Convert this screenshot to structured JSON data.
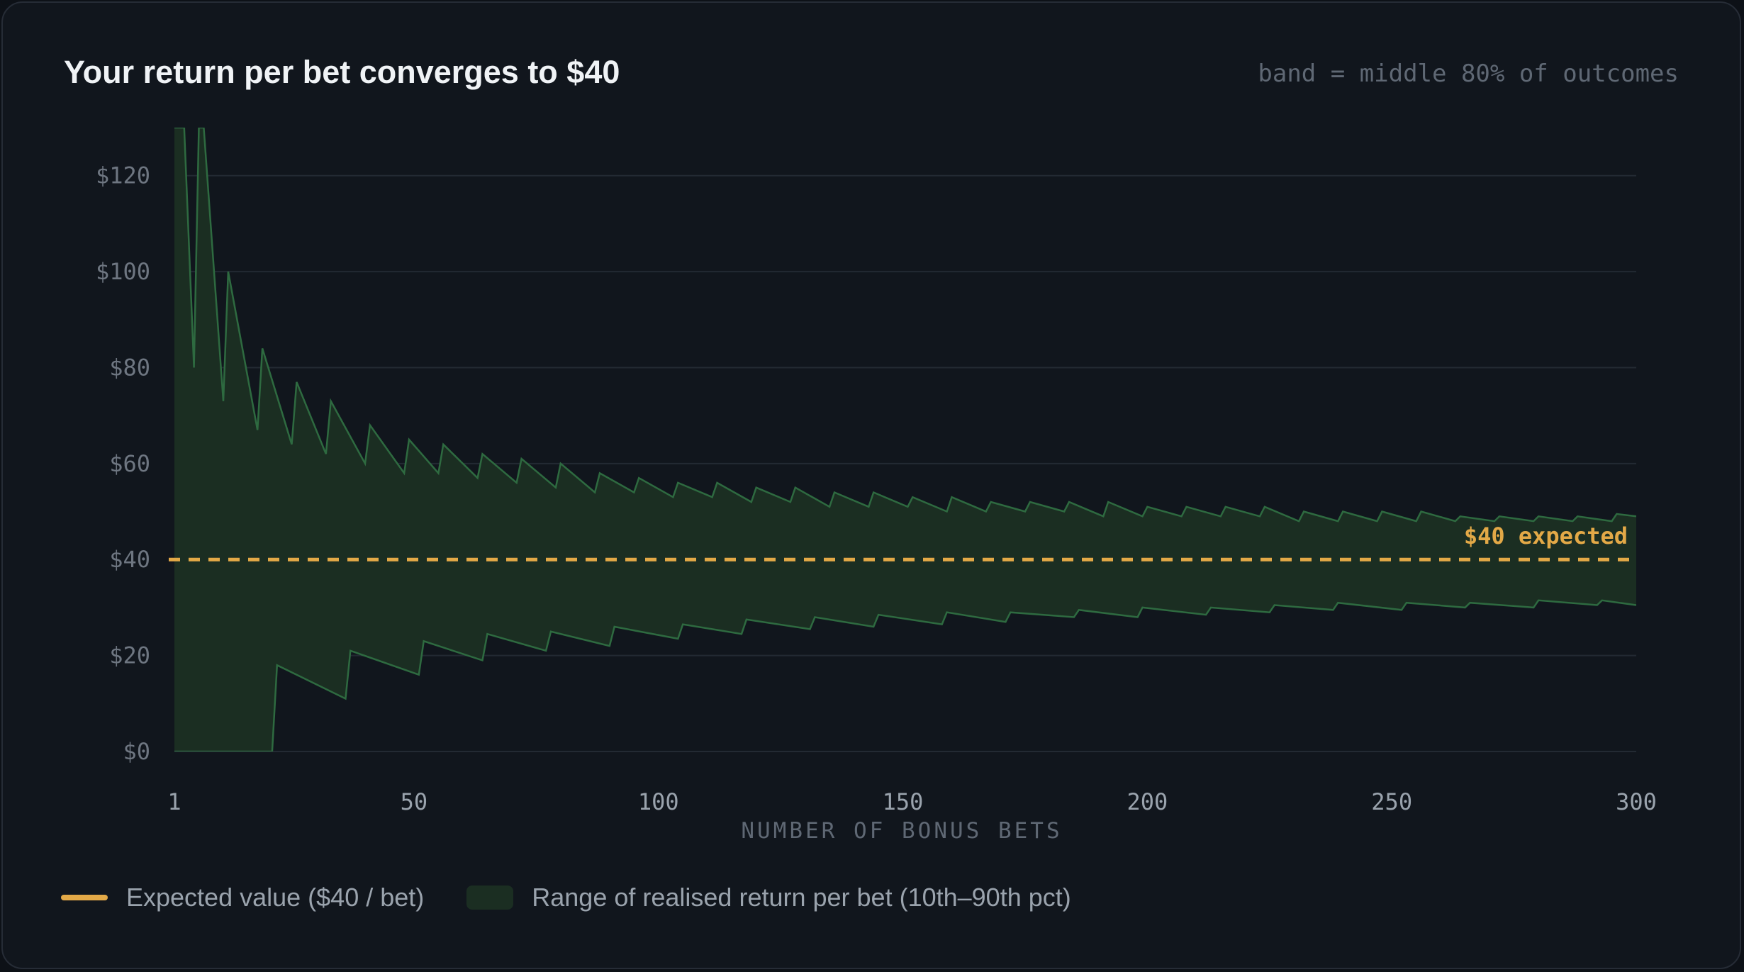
{
  "header": {
    "title": "Your return per bet converges to $40",
    "note": "band = middle 80% of outcomes"
  },
  "legend": {
    "expected_label": "Expected value ($40 / bet)",
    "band_label": "Range of realised return per bet (10th–90th pct)"
  },
  "colors": {
    "background": "#11161d",
    "expected": "#e3a947",
    "band_fill": "#1b2e22",
    "band_stroke": "#2e6a40",
    "grid": "#232a33"
  },
  "chart_data": {
    "type": "area",
    "title": "Your return per bet converges to $40",
    "xlabel": "NUMBER OF BONUS BETS",
    "ylabel": "",
    "xlim": [
      1,
      300
    ],
    "ylim": [
      0,
      130
    ],
    "x_ticks": [
      1,
      50,
      100,
      150,
      200,
      250,
      300
    ],
    "x_tick_labels": [
      "1",
      "50",
      "100",
      "150",
      "200",
      "250",
      "300"
    ],
    "y_ticks": [
      0,
      20,
      40,
      60,
      80,
      100,
      120
    ],
    "y_tick_labels": [
      "$0",
      "$20",
      "$40",
      "$60",
      "$80",
      "$100",
      "$120"
    ],
    "grid": "horizontal",
    "legend_position": "bottom-left",
    "expected": {
      "name": "Expected value ($40 / bet)",
      "value": 40,
      "annotation": "$40 expected"
    },
    "band": {
      "name": "Range of realised return per bet (10th–90th pct)",
      "upper": [
        [
          1,
          130
        ],
        [
          3,
          130
        ],
        [
          5,
          80
        ],
        [
          6,
          130
        ],
        [
          7,
          130
        ],
        [
          11,
          73
        ],
        [
          12,
          100
        ],
        [
          18,
          67
        ],
        [
          19,
          84
        ],
        [
          25,
          64
        ],
        [
          26,
          77
        ],
        [
          32,
          62
        ],
        [
          33,
          73
        ],
        [
          40,
          60
        ],
        [
          41,
          68
        ],
        [
          48,
          58
        ],
        [
          49,
          65
        ],
        [
          55,
          58
        ],
        [
          56,
          64
        ],
        [
          63,
          57
        ],
        [
          64,
          62
        ],
        [
          71,
          56
        ],
        [
          72,
          61
        ],
        [
          79,
          55
        ],
        [
          80,
          60
        ],
        [
          87,
          54
        ],
        [
          88,
          58
        ],
        [
          95,
          54
        ],
        [
          96,
          57
        ],
        [
          103,
          53
        ],
        [
          104,
          56
        ],
        [
          111,
          53
        ],
        [
          112,
          56
        ],
        [
          119,
          52
        ],
        [
          120,
          55
        ],
        [
          127,
          52
        ],
        [
          128,
          55
        ],
        [
          135,
          51
        ],
        [
          136,
          54
        ],
        [
          143,
          51
        ],
        [
          144,
          54
        ],
        [
          151,
          51
        ],
        [
          152,
          53
        ],
        [
          159,
          50
        ],
        [
          160,
          53
        ],
        [
          167,
          50
        ],
        [
          168,
          52
        ],
        [
          175,
          50
        ],
        [
          176,
          52
        ],
        [
          183,
          50
        ],
        [
          184,
          52
        ],
        [
          191,
          49
        ],
        [
          192,
          52
        ],
        [
          199,
          49
        ],
        [
          200,
          51
        ],
        [
          207,
          49
        ],
        [
          208,
          51
        ],
        [
          215,
          49
        ],
        [
          216,
          51
        ],
        [
          223,
          49
        ],
        [
          224,
          51
        ],
        [
          231,
          48
        ],
        [
          232,
          50
        ],
        [
          239,
          48
        ],
        [
          240,
          50
        ],
        [
          247,
          48
        ],
        [
          248,
          50
        ],
        [
          255,
          48
        ],
        [
          256,
          50
        ],
        [
          263,
          48
        ],
        [
          264,
          49
        ],
        [
          271,
          48
        ],
        [
          272,
          49
        ],
        [
          279,
          48
        ],
        [
          280,
          49
        ],
        [
          287,
          48
        ],
        [
          288,
          49
        ],
        [
          295,
          48
        ],
        [
          296,
          49.5
        ],
        [
          300,
          49
        ]
      ],
      "lower": [
        [
          1,
          0
        ],
        [
          21,
          0
        ],
        [
          22,
          18
        ],
        [
          36,
          11
        ],
        [
          37,
          21
        ],
        [
          51,
          16
        ],
        [
          52,
          23
        ],
        [
          64,
          19
        ],
        [
          65,
          24.5
        ],
        [
          77,
          21
        ],
        [
          78,
          25
        ],
        [
          90,
          22
        ],
        [
          91,
          26
        ],
        [
          104,
          23.5
        ],
        [
          105,
          26.5
        ],
        [
          117,
          24.5
        ],
        [
          118,
          27.5
        ],
        [
          131,
          25.5
        ],
        [
          132,
          28
        ],
        [
          144,
          26
        ],
        [
          145,
          28.5
        ],
        [
          158,
          26.5
        ],
        [
          159,
          29
        ],
        [
          171,
          27
        ],
        [
          172,
          29
        ],
        [
          185,
          28
        ],
        [
          186,
          29.5
        ],
        [
          198,
          28
        ],
        [
          199,
          30
        ],
        [
          212,
          28.5
        ],
        [
          213,
          30
        ],
        [
          225,
          29
        ],
        [
          226,
          30.5
        ],
        [
          238,
          29.5
        ],
        [
          239,
          31
        ],
        [
          252,
          29.5
        ],
        [
          253,
          31
        ],
        [
          265,
          30
        ],
        [
          266,
          31
        ],
        [
          279,
          30
        ],
        [
          280,
          31.5
        ],
        [
          292,
          30.5
        ],
        [
          293,
          31.5
        ],
        [
          300,
          30.5
        ]
      ]
    }
  }
}
